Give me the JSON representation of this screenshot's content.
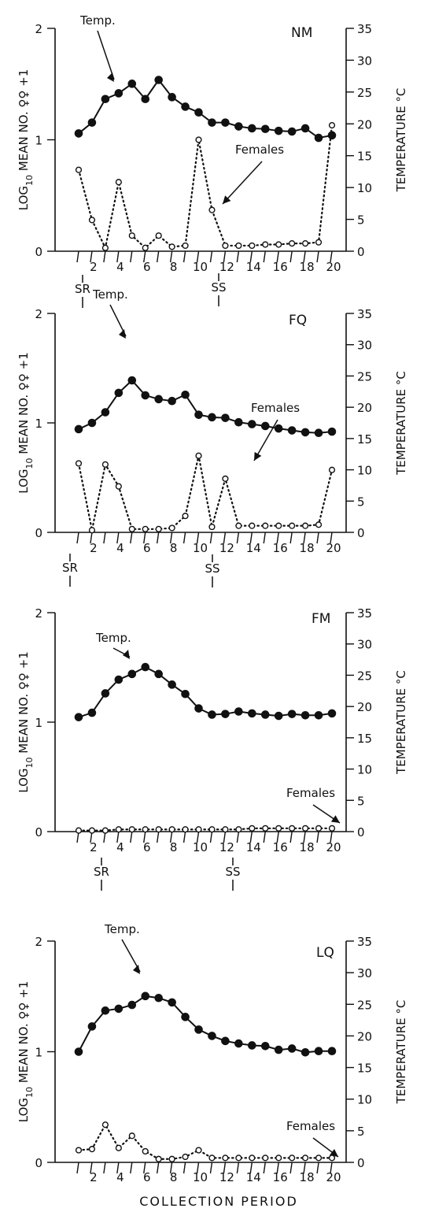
{
  "figure": {
    "xlabel": "COLLECTION PERIOD",
    "ylabel_left": {
      "prefix": "LOG",
      "sub": "10",
      "rest": " MEAN NO. ♀♀ +1"
    },
    "ylabel_right": "TEMPERATURE °C",
    "temp_label": "Temp.",
    "females_label": "Females",
    "sr_label": "SR",
    "ss_label": "SS"
  },
  "chart_data": [
    {
      "type": "line",
      "panel": "NM",
      "x": [
        1,
        2,
        3,
        4,
        5,
        6,
        7,
        8,
        9,
        10,
        11,
        12,
        13,
        14,
        15,
        16,
        17,
        18,
        19,
        20
      ],
      "xticks": [
        2,
        4,
        6,
        8,
        10,
        12,
        14,
        16,
        18,
        20
      ],
      "ylim_left": [
        0,
        2
      ],
      "ylim_right": [
        0,
        35
      ],
      "yticks_left": [
        0,
        1,
        2
      ],
      "yticks_right": [
        0,
        5,
        10,
        15,
        20,
        25,
        30,
        35
      ],
      "sunrise_at": 1,
      "sunset_at": 11,
      "series": [
        {
          "name": "Temp.",
          "axis": "right",
          "style": "solid-filled",
          "values": [
            18.5,
            20.2,
            23.9,
            24.8,
            26.3,
            23.9,
            26.9,
            24.2,
            22.7,
            21.8,
            20.2,
            20.2,
            19.6,
            19.3,
            19.2,
            18.9,
            18.8,
            19.3,
            17.8,
            18.2
          ]
        },
        {
          "name": "Females",
          "axis": "left",
          "style": "dotted-open",
          "values": [
            0.73,
            0.28,
            0.03,
            0.62,
            0.14,
            0.03,
            0.14,
            0.04,
            0.05,
            1.0,
            0.37,
            0.05,
            0.05,
            0.05,
            0.06,
            0.06,
            0.07,
            0.07,
            0.08,
            1.13
          ]
        }
      ]
    },
    {
      "type": "line",
      "panel": "FQ",
      "x": [
        1,
        2,
        3,
        4,
        5,
        6,
        7,
        8,
        9,
        10,
        11,
        12,
        13,
        14,
        15,
        16,
        17,
        18,
        19,
        20
      ],
      "xticks": [
        2,
        4,
        6,
        8,
        10,
        12,
        14,
        16,
        18,
        20
      ],
      "ylim_left": [
        0,
        2
      ],
      "ylim_right": [
        0,
        35
      ],
      "yticks_left": [
        0,
        1,
        2
      ],
      "yticks_right": [
        0,
        5,
        10,
        15,
        20,
        25,
        30,
        35
      ],
      "sunrise_at": 1,
      "sunset_at": 11,
      "series": [
        {
          "name": "Temp.",
          "axis": "right",
          "style": "solid-filled",
          "values": [
            16.5,
            17.5,
            19.2,
            22.3,
            24.3,
            21.9,
            21.3,
            21.0,
            22.0,
            18.8,
            18.4,
            18.3,
            17.6,
            17.3,
            17.0,
            16.6,
            16.3,
            16.0,
            15.9,
            16.1
          ]
        },
        {
          "name": "Females",
          "axis": "left",
          "style": "dotted-open",
          "values": [
            0.63,
            0.02,
            0.62,
            0.42,
            0.03,
            0.03,
            0.03,
            0.04,
            0.15,
            0.7,
            0.05,
            0.49,
            0.06,
            0.06,
            0.06,
            0.06,
            0.06,
            0.06,
            0.07,
            0.57
          ]
        }
      ]
    },
    {
      "type": "line",
      "panel": "FM",
      "x": [
        1,
        2,
        3,
        4,
        5,
        6,
        7,
        8,
        9,
        10,
        11,
        12,
        13,
        14,
        15,
        16,
        17,
        18,
        19,
        20
      ],
      "xticks": [
        2,
        4,
        6,
        8,
        10,
        12,
        14,
        16,
        18,
        20
      ],
      "ylim_left": [
        0,
        2
      ],
      "ylim_right": [
        0,
        35
      ],
      "yticks_left": [
        0,
        1,
        2
      ],
      "yticks_right": [
        0,
        5,
        10,
        15,
        20,
        25,
        30,
        35
      ],
      "sunrise_at": 1,
      "sunset_at": 11,
      "series": [
        {
          "name": "Temp.",
          "axis": "right",
          "style": "solid-filled",
          "values": [
            18.3,
            19.0,
            22.1,
            24.3,
            25.2,
            26.3,
            25.2,
            23.5,
            22.0,
            19.7,
            18.7,
            18.8,
            19.2,
            18.9,
            18.7,
            18.5,
            18.8,
            18.6,
            18.6,
            18.9
          ]
        },
        {
          "name": "Females",
          "axis": "left",
          "style": "dotted-open",
          "values": [
            0.01,
            0.01,
            0.01,
            0.02,
            0.02,
            0.02,
            0.02,
            0.02,
            0.02,
            0.02,
            0.02,
            0.02,
            0.02,
            0.03,
            0.03,
            0.03,
            0.03,
            0.03,
            0.03,
            0.03
          ]
        }
      ]
    },
    {
      "type": "line",
      "panel": "LQ",
      "x": [
        1,
        2,
        3,
        4,
        5,
        6,
        7,
        8,
        9,
        10,
        11,
        12,
        13,
        14,
        15,
        16,
        17,
        18,
        19,
        20
      ],
      "xticks": [
        2,
        4,
        6,
        8,
        10,
        12,
        14,
        16,
        18,
        20
      ],
      "ylim_left": [
        0,
        2
      ],
      "ylim_right": [
        0,
        35
      ],
      "yticks_left": [
        0,
        1,
        2
      ],
      "yticks_right": [
        0,
        5,
        10,
        15,
        20,
        25,
        30,
        35
      ],
      "sunrise_at": null,
      "sunset_at": null,
      "series": [
        {
          "name": "Temp.",
          "axis": "right",
          "style": "solid-filled",
          "values": [
            17.5,
            21.5,
            24.0,
            24.3,
            24.9,
            26.3,
            26.0,
            25.3,
            23.0,
            21.0,
            20.0,
            19.2,
            18.8,
            18.5,
            18.4,
            17.8,
            18.0,
            17.4,
            17.6,
            17.6
          ]
        },
        {
          "name": "Females",
          "axis": "left",
          "style": "dotted-open",
          "values": [
            0.11,
            0.12,
            0.34,
            0.13,
            0.24,
            0.1,
            0.03,
            0.03,
            0.05,
            0.11,
            0.04,
            0.04,
            0.04,
            0.04,
            0.04,
            0.04,
            0.04,
            0.04,
            0.04,
            0.04
          ]
        }
      ]
    }
  ]
}
